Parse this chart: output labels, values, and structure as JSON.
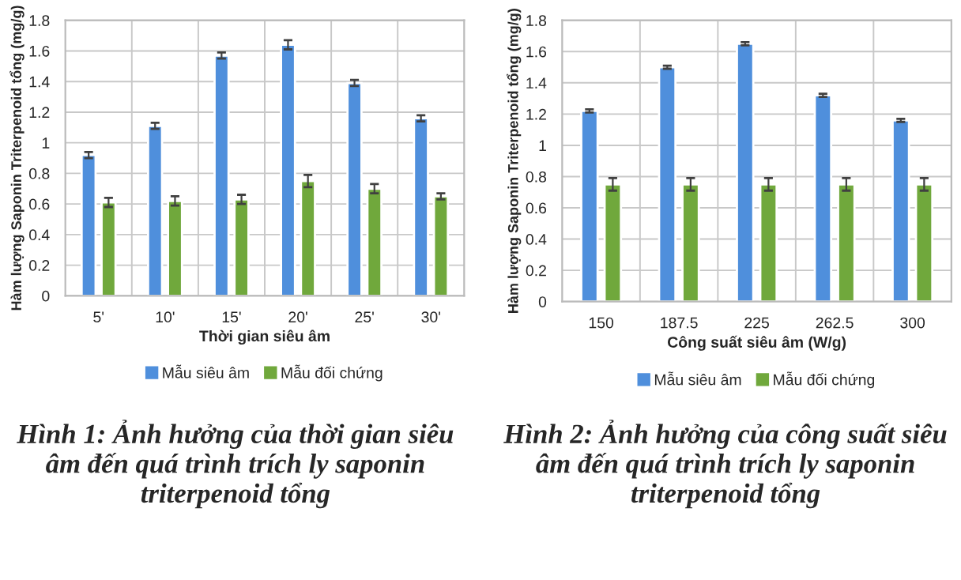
{
  "chart_data": [
    {
      "type": "bar",
      "title": "Hình 1: Ảnh hưởng của thời gian siêu âm đến quá trình trích ly saponin triterpenoid tổng",
      "xlabel": "Thời gian siêu âm",
      "ylabel": "Hàm lượng Saponin Triterpenoid tổng (mg/g)",
      "categories": [
        "5'",
        "10'",
        "15'",
        "20'",
        "25'",
        "30'"
      ],
      "series": [
        {
          "name": "Mẫu siêu âm",
          "color": "#4f8fdc",
          "values": [
            0.92,
            1.11,
            1.57,
            1.64,
            1.39,
            1.16
          ],
          "errors": [
            0.02,
            0.02,
            0.02,
            0.03,
            0.02,
            0.02
          ]
        },
        {
          "name": "Mẫu đối chứng",
          "color": "#70a83c",
          "values": [
            0.61,
            0.62,
            0.63,
            0.75,
            0.7,
            0.65
          ],
          "errors": [
            0.03,
            0.03,
            0.03,
            0.04,
            0.03,
            0.02
          ]
        }
      ],
      "ylim": [
        0,
        1.8
      ],
      "yticks": [
        0,
        0.2,
        0.4,
        0.6,
        0.8,
        1,
        1.2,
        1.4,
        1.6,
        1.8
      ],
      "grid": true,
      "legend": "bottom"
    },
    {
      "type": "bar",
      "title": "Hình 2: Ảnh hưởng của công suất siêu âm đến quá trình trích ly saponin triterpenoid tổng",
      "xlabel": "Công suất siêu âm (W/g)",
      "ylabel": "Hàm lượng Saponin Triterpenoid tổng (mg/g)",
      "categories": [
        "150",
        "187.5",
        "225",
        "262.5",
        "300"
      ],
      "series": [
        {
          "name": "Mẫu siêu âm",
          "color": "#4f8fdc",
          "values": [
            1.22,
            1.5,
            1.65,
            1.32,
            1.16
          ],
          "errors": [
            0.01,
            0.01,
            0.01,
            0.01,
            0.01
          ]
        },
        {
          "name": "Mẫu đối chứng",
          "color": "#70a83c",
          "values": [
            0.75,
            0.75,
            0.75,
            0.75,
            0.75
          ],
          "errors": [
            0.04,
            0.04,
            0.04,
            0.04,
            0.04
          ]
        }
      ],
      "ylim": [
        0,
        1.8
      ],
      "yticks": [
        0,
        0.2,
        0.4,
        0.6,
        0.8,
        1,
        1.2,
        1.4,
        1.6,
        1.8
      ],
      "grid": true,
      "legend": "bottom"
    }
  ]
}
